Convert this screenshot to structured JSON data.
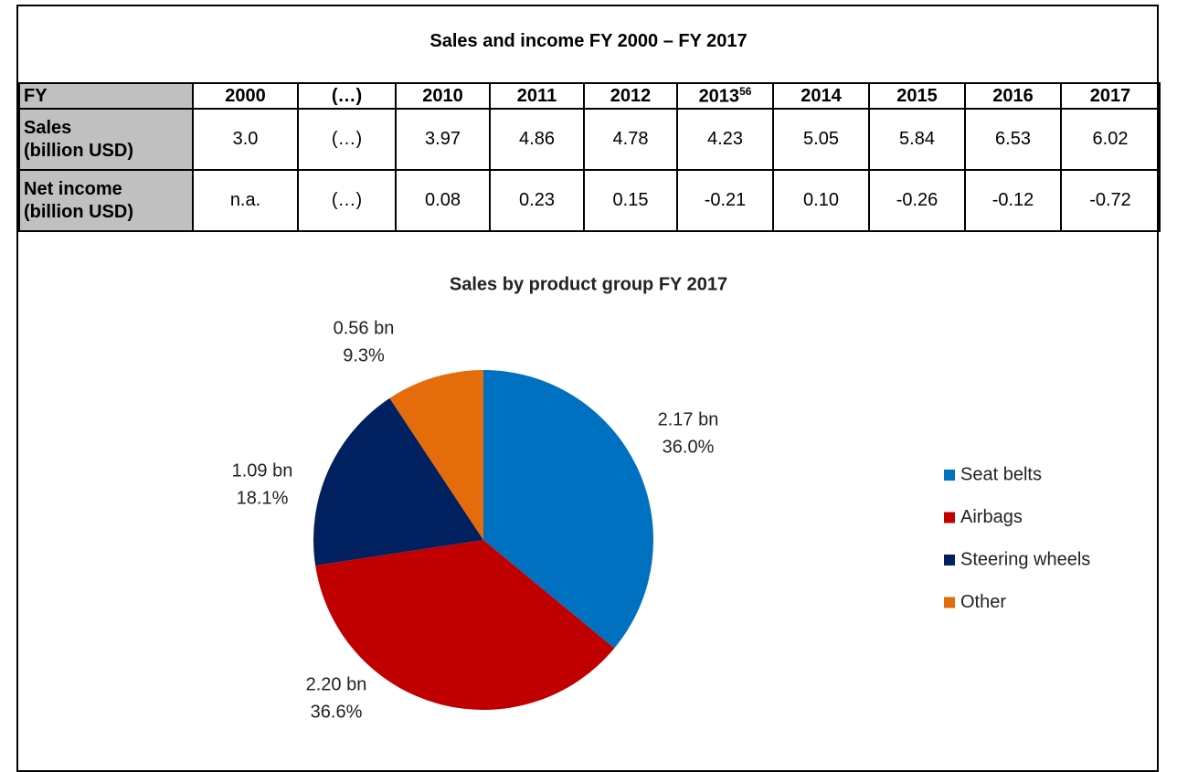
{
  "table": {
    "title": "Sales and income FY 2000 – FY 2017",
    "header": [
      "FY",
      "2000",
      "(…)",
      "2010",
      "2011",
      "2012",
      "2013",
      "2014",
      "2015",
      "2016",
      "2017"
    ],
    "header_superscript": {
      "column": 6,
      "text": "56"
    },
    "rows": [
      {
        "label": [
          "Sales",
          "(billion USD)"
        ],
        "cells": [
          "3.0",
          "(…)",
          "3.97",
          "4.86",
          "4.78",
          "4.23",
          "5.05",
          "5.84",
          "6.53",
          "6.02"
        ]
      },
      {
        "label": [
          "Net income",
          "(billion USD)"
        ],
        "cells": [
          "n.a.",
          "(…)",
          "0.08",
          "0.23",
          "0.15",
          "-0.21",
          "0.10",
          "-0.26",
          "-0.12",
          "-0.72"
        ]
      }
    ]
  },
  "chart_data": {
    "type": "pie",
    "title": "Sales by product group FY 2017",
    "categories": [
      "Seat belts",
      "Airbags",
      "Steering wheels",
      "Other"
    ],
    "values": [
      36.0,
      36.6,
      18.1,
      9.3
    ],
    "value_labels": [
      "36.0%",
      "36.6%",
      "18.1%",
      "9.3%"
    ],
    "amount_labels": [
      "2.17 bn",
      "2.20 bn",
      "1.09 bn",
      "0.56 bn"
    ],
    "colors": [
      "#0070c0",
      "#c00000",
      "#002060",
      "#e46c0a"
    ],
    "legend": "right"
  }
}
